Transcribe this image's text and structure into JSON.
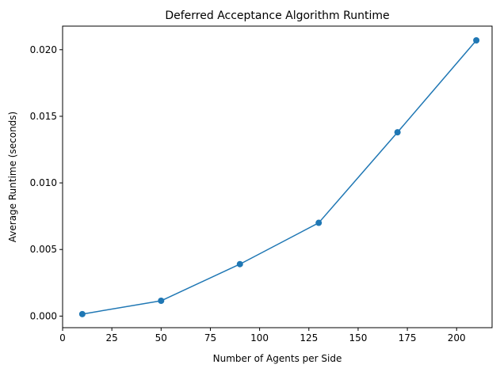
{
  "chart_data": {
    "type": "line",
    "title": "Deferred Acceptance Algorithm Runtime",
    "xlabel": "Number of Agents per Side",
    "ylabel": "Average Runtime (seconds)",
    "x": [
      10,
      50,
      90,
      130,
      170,
      210
    ],
    "series": [
      {
        "values": [
          0.00015,
          0.00115,
          0.0039,
          0.007,
          0.0138,
          0.0207
        ],
        "color": "#1f77b4",
        "marker": "circle"
      }
    ],
    "xlim": [
      0,
      218
    ],
    "ylim": [
      -0.00087,
      0.02177
    ],
    "xticks": [
      0,
      25,
      50,
      75,
      100,
      125,
      150,
      175,
      200
    ],
    "yticks": [
      0.0,
      0.005,
      0.01,
      0.015,
      0.02
    ],
    "xtick_labels": [
      "0",
      "25",
      "50",
      "75",
      "100",
      "125",
      "150",
      "175",
      "200"
    ],
    "ytick_labels": [
      "0.000",
      "0.005",
      "0.010",
      "0.015",
      "0.020"
    ],
    "grid": false,
    "legend": "none"
  }
}
